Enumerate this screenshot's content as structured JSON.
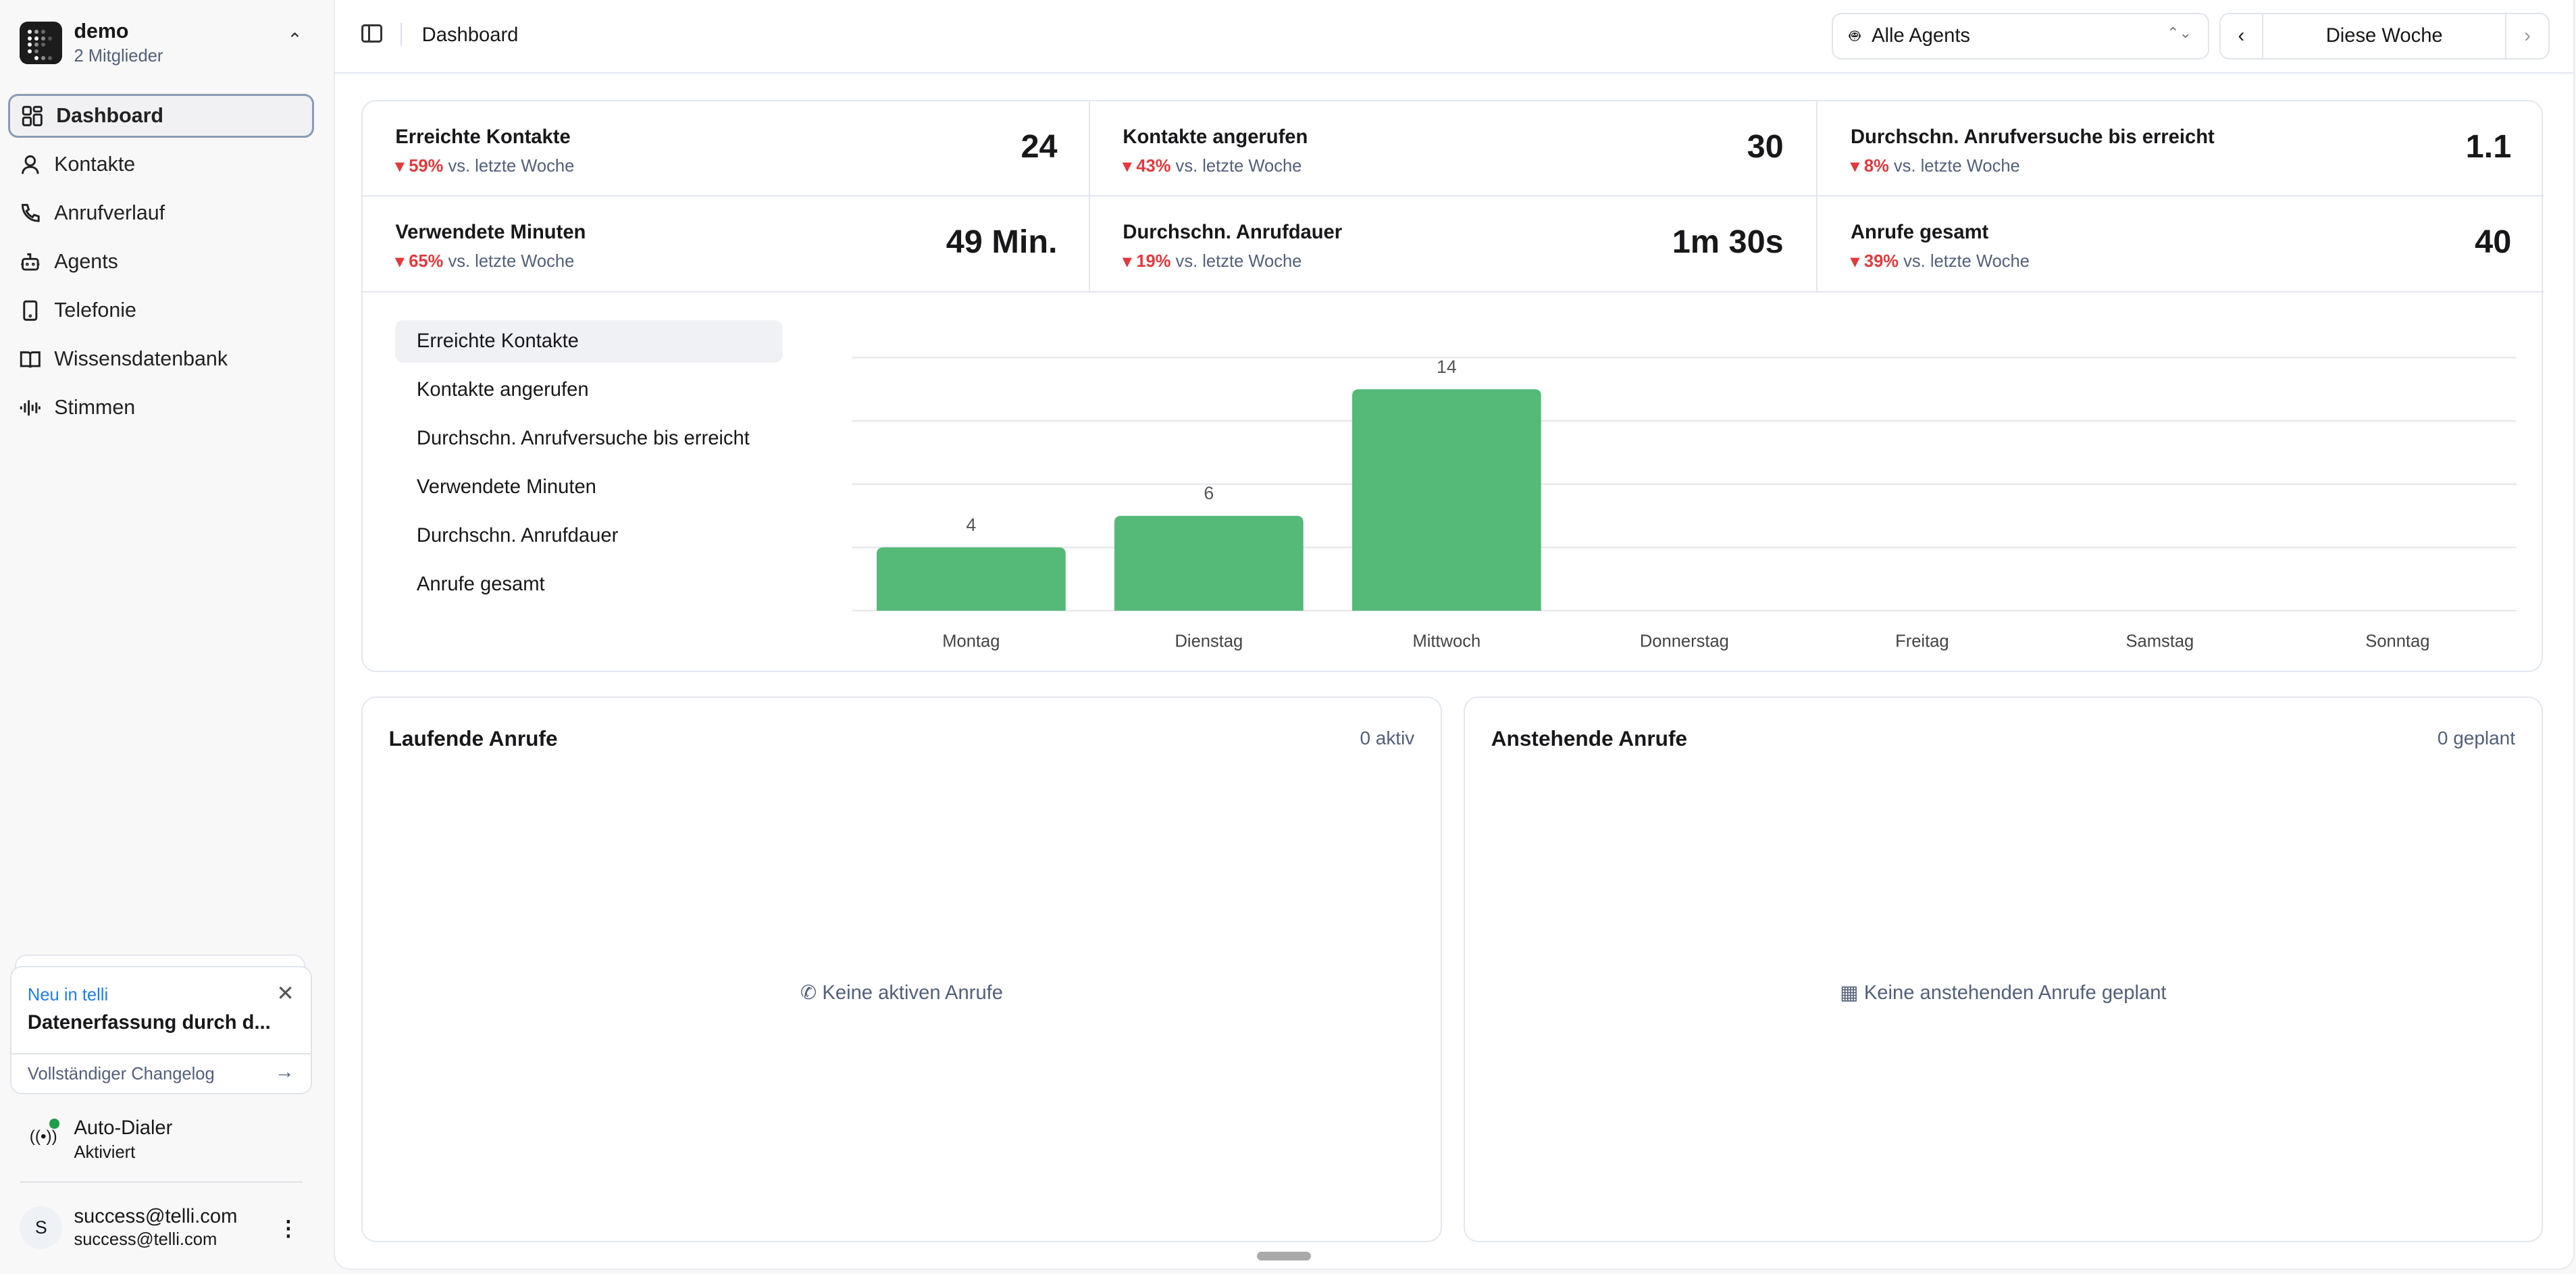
{
  "workspace": {
    "name": "demo",
    "members": "2 Mitglieder"
  },
  "sidebar": {
    "items": [
      {
        "label": "Dashboard",
        "icon": "layout-grid-icon",
        "active": true
      },
      {
        "label": "Kontakte",
        "icon": "user-icon"
      },
      {
        "label": "Anrufverlauf",
        "icon": "phone-icon"
      },
      {
        "label": "Agents",
        "icon": "bot-icon"
      },
      {
        "label": "Telefonie",
        "icon": "tablet-icon"
      },
      {
        "label": "Wissensdatenbank",
        "icon": "book-icon"
      },
      {
        "label": "Stimmen",
        "icon": "audio-waveform-icon"
      }
    ]
  },
  "promo": {
    "eyebrow": "Neu in telli",
    "title": "Datenerfassung durch d...",
    "link": "Vollständiger Changelog"
  },
  "dialer": {
    "label": "Auto-Dialer",
    "status": "Aktiviert",
    "status_color": "#1f9d4a"
  },
  "user": {
    "initial": "S",
    "name": "success@telli.com",
    "email": "success@telli.com"
  },
  "header": {
    "breadcrumb": "Dashboard",
    "agent_filter": "Alle Agents",
    "period": "Diese Woche"
  },
  "stats": [
    {
      "title": "Erreichte Kontakte",
      "delta": "59%",
      "suffix": "vs. letzte Woche",
      "value": "24"
    },
    {
      "title": "Kontakte angerufen",
      "delta": "43%",
      "suffix": "vs. letzte Woche",
      "value": "30"
    },
    {
      "title": "Durchschn. Anrufversuche bis erreicht",
      "delta": "8%",
      "suffix": "vs. letzte Woche",
      "value": "1.1"
    },
    {
      "title": "Verwendete Minuten",
      "delta": "65%",
      "suffix": "vs. letzte Woche",
      "value": "49 Min."
    },
    {
      "title": "Durchschn. Anrufdauer",
      "delta": "19%",
      "suffix": "vs. letzte Woche",
      "value": "1m 30s"
    },
    {
      "title": "Anrufe gesamt",
      "delta": "39%",
      "suffix": "vs. letzte Woche",
      "value": "40"
    }
  ],
  "metric_menu": [
    "Erreichte Kontakte",
    "Kontakte angerufen",
    "Durchschn. Anrufversuche bis erreicht",
    "Verwendete Minuten",
    "Durchschn. Anrufdauer",
    "Anrufe gesamt"
  ],
  "chart_data": {
    "type": "bar",
    "categories": [
      "Montag",
      "Dienstag",
      "Mittwoch",
      "Donnerstag",
      "Freitag",
      "Samstag",
      "Sonntag"
    ],
    "values": [
      4,
      6,
      14,
      0,
      0,
      0,
      0
    ],
    "ylim": [
      0,
      16
    ],
    "grid": true,
    "bar_color": "#55b978"
  },
  "cards": {
    "running": {
      "title": "Laufende Anrufe",
      "count": "0 aktiv",
      "empty": "Keine aktiven Anrufe"
    },
    "pending": {
      "title": "Anstehende Anrufe",
      "count": "0 geplant",
      "empty": "Keine anstehenden Anrufe geplant"
    }
  }
}
